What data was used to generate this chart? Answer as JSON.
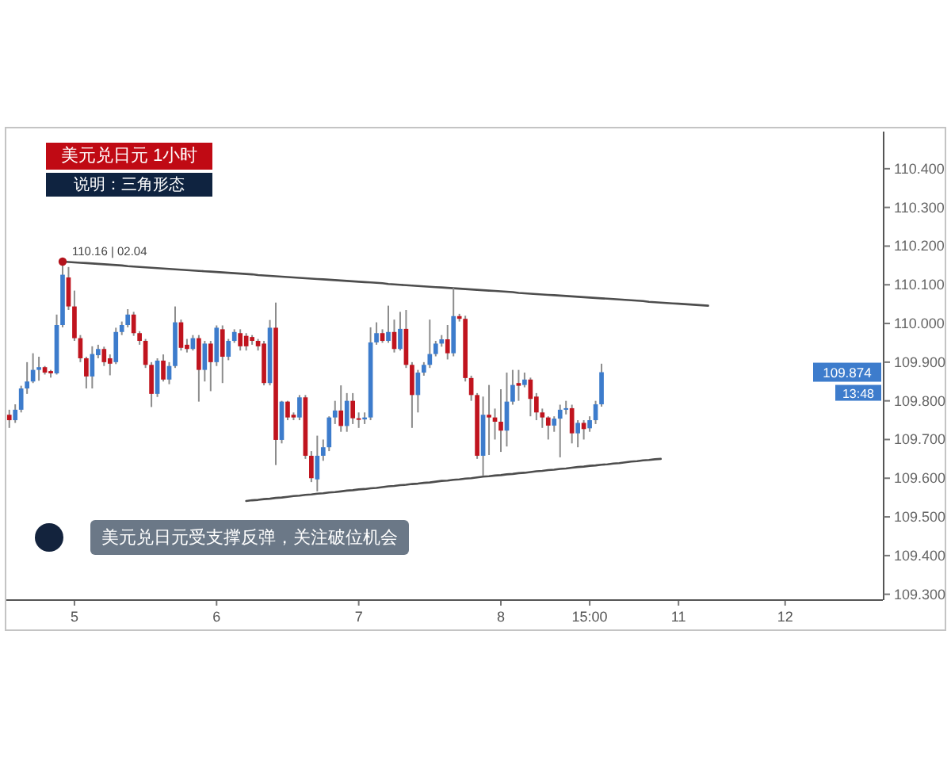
{
  "chart_data": {
    "type": "candlestick",
    "title": "美元兑日元 1小时",
    "subtitle": "说明：三角形态",
    "categories": [
      null,
      null,
      null,
      null,
      null,
      null,
      null,
      null,
      null,
      null,
      null,
      "5",
      null,
      null,
      null,
      null,
      null,
      null,
      null,
      null,
      null,
      null,
      null,
      null,
      null,
      null,
      null,
      null,
      null,
      null,
      null,
      null,
      null,
      null,
      null,
      "6",
      null,
      null,
      null,
      null,
      null,
      null,
      null,
      null,
      null,
      null,
      null,
      null,
      null,
      null,
      null,
      null,
      null,
      null,
      null,
      null,
      null,
      null,
      null,
      "7",
      null,
      null,
      null,
      null,
      null,
      null,
      null,
      null,
      null,
      null,
      null,
      null,
      null,
      null,
      null,
      null,
      null,
      null,
      null,
      null,
      null,
      null,
      null,
      "8",
      null,
      null,
      null,
      null,
      null,
      null,
      null,
      null,
      null,
      null,
      null,
      null,
      null,
      null,
      "15:00",
      null,
      null,
      null,
      null,
      null,
      null,
      null,
      null,
      null,
      null,
      null,
      null,
      null,
      null,
      "11",
      null,
      null,
      null,
      null,
      null,
      null,
      null,
      null,
      null,
      null,
      null,
      null,
      null,
      null,
      null,
      null,
      null,
      "12",
      null,
      null,
      null,
      null,
      null,
      null,
      null,
      null,
      null,
      null,
      null,
      null,
      null,
      null,
      null,
      null
    ],
    "ohlc": [
      [
        109.764,
        109.777,
        109.73,
        109.75
      ],
      [
        109.75,
        109.791,
        109.743,
        109.777
      ],
      [
        109.777,
        109.839,
        109.77,
        109.832
      ],
      [
        109.832,
        109.9,
        109.818,
        109.85
      ],
      [
        109.85,
        109.923,
        109.846,
        109.88
      ],
      [
        109.88,
        109.914,
        109.852,
        109.887
      ],
      [
        109.887,
        109.89,
        109.868,
        109.873
      ],
      [
        109.877,
        109.88,
        109.86,
        109.871
      ],
      [
        109.871,
        110.023,
        109.868,
        109.996
      ],
      [
        109.996,
        110.16,
        109.99,
        110.126
      ],
      [
        110.119,
        110.146,
        110.035,
        110.044
      ],
      [
        110.044,
        110.085,
        109.955,
        109.962
      ],
      [
        109.962,
        109.97,
        109.9,
        109.91
      ],
      [
        109.91,
        109.914,
        109.832,
        109.863
      ],
      [
        109.863,
        109.941,
        109.832,
        109.921
      ],
      [
        109.918,
        109.945,
        109.91,
        109.934
      ],
      [
        109.934,
        109.94,
        109.89,
        109.9
      ],
      [
        109.91,
        109.92,
        109.866,
        109.896
      ],
      [
        109.9,
        109.989,
        109.895,
        109.978
      ],
      [
        109.978,
        110.005,
        109.97,
        109.996
      ],
      [
        109.996,
        110.037,
        109.99,
        110.023
      ],
      [
        110.023,
        110.03,
        109.968,
        109.975
      ],
      [
        109.975,
        109.98,
        109.945,
        109.955
      ],
      [
        109.955,
        109.96,
        109.885,
        109.893
      ],
      [
        109.893,
        109.9,
        109.784,
        109.818
      ],
      [
        109.818,
        109.91,
        109.81,
        109.904
      ],
      [
        109.904,
        109.92,
        109.85,
        109.855
      ],
      [
        109.855,
        109.9,
        109.843,
        109.89
      ],
      [
        109.89,
        110.044,
        109.885,
        110.003
      ],
      [
        110.003,
        110.01,
        109.93,
        109.937
      ],
      [
        109.945,
        109.96,
        109.925,
        109.934
      ],
      [
        109.934,
        109.97,
        109.93,
        109.962
      ],
      [
        109.962,
        109.97,
        109.798,
        109.88
      ],
      [
        109.88,
        109.955,
        109.85,
        109.948
      ],
      [
        109.948,
        109.955,
        109.825,
        109.9
      ],
      [
        109.9,
        109.995,
        109.89,
        109.989
      ],
      [
        109.985,
        109.995,
        109.846,
        109.914
      ],
      [
        109.914,
        109.96,
        109.905,
        109.955
      ],
      [
        109.955,
        109.985,
        109.95,
        109.978
      ],
      [
        109.975,
        109.985,
        109.93,
        109.941
      ],
      [
        109.968,
        109.975,
        109.93,
        109.941
      ],
      [
        109.965,
        109.97,
        109.945,
        109.955
      ],
      [
        109.955,
        109.96,
        109.93,
        109.941
      ],
      [
        109.948,
        109.955,
        109.84,
        109.846
      ],
      [
        109.846,
        110.009,
        109.84,
        109.989
      ],
      [
        109.989,
        110.054,
        109.634,
        109.699
      ],
      [
        109.699,
        109.8,
        109.69,
        109.798
      ],
      [
        109.798,
        109.8,
        109.75,
        109.757
      ],
      [
        109.764,
        109.77,
        109.75,
        109.757
      ],
      [
        109.757,
        109.815,
        109.75,
        109.809
      ],
      [
        109.809,
        109.815,
        109.65,
        109.658
      ],
      [
        109.658,
        109.67,
        109.59,
        109.6
      ],
      [
        109.597,
        109.71,
        109.566,
        109.658
      ],
      [
        109.658,
        109.7,
        109.645,
        109.68
      ],
      [
        109.68,
        109.76,
        109.67,
        109.757
      ],
      [
        109.757,
        109.8,
        109.74,
        109.775
      ],
      [
        109.775,
        109.84,
        109.72,
        109.735
      ],
      [
        109.735,
        109.82,
        109.72,
        109.8
      ],
      [
        109.8,
        109.82,
        109.74,
        109.755
      ],
      [
        109.755,
        109.77,
        109.73,
        109.752
      ],
      [
        109.752,
        109.77,
        109.74,
        109.757
      ],
      [
        109.757,
        109.99,
        109.75,
        109.951
      ],
      [
        109.951,
        110.003,
        109.945,
        109.975
      ],
      [
        109.975,
        109.985,
        109.95,
        109.955
      ],
      [
        109.955,
        110.046,
        109.95,
        109.978
      ],
      [
        109.978,
        110.01,
        109.925,
        109.934
      ],
      [
        109.934,
        110.03,
        109.93,
        109.986
      ],
      [
        109.986,
        110.035,
        109.885,
        109.893
      ],
      [
        109.893,
        109.9,
        109.73,
        109.815
      ],
      [
        109.815,
        109.88,
        109.77,
        109.873
      ],
      [
        109.873,
        109.9,
        109.865,
        109.893
      ],
      [
        109.893,
        110.01,
        109.885,
        109.921
      ],
      [
        109.921,
        109.955,
        109.915,
        109.948
      ],
      [
        109.948,
        109.97,
        109.94,
        109.959
      ],
      [
        109.959,
        109.996,
        109.907,
        109.923
      ],
      [
        109.923,
        110.092,
        109.915,
        110.019
      ],
      [
        110.019,
        110.025,
        110.005,
        110.012
      ],
      [
        110.012,
        110.02,
        109.85,
        109.859
      ],
      [
        109.859,
        109.865,
        109.8,
        109.815
      ],
      [
        109.815,
        109.82,
        109.65,
        109.658
      ],
      [
        109.658,
        109.811,
        109.607,
        109.764
      ],
      [
        109.764,
        109.841,
        109.66,
        109.757
      ],
      [
        109.757,
        109.78,
        109.7,
        109.746
      ],
      [
        109.746,
        109.83,
        109.668,
        109.723
      ],
      [
        109.723,
        109.873,
        109.682,
        109.798
      ],
      [
        109.798,
        109.88,
        109.79,
        109.841
      ],
      [
        109.846,
        109.88,
        109.8,
        109.839
      ],
      [
        109.841,
        109.873,
        109.835,
        109.855
      ],
      [
        109.855,
        109.86,
        109.76,
        109.805
      ],
      [
        109.811,
        109.82,
        109.75,
        109.77
      ],
      [
        109.77,
        109.78,
        109.73,
        109.757
      ],
      [
        109.757,
        109.76,
        109.7,
        109.736
      ],
      [
        109.736,
        109.76,
        109.72,
        109.754
      ],
      [
        109.754,
        109.79,
        109.654,
        109.777
      ],
      [
        109.777,
        109.8,
        109.765,
        109.781
      ],
      [
        109.781,
        109.79,
        109.69,
        109.716
      ],
      [
        109.716,
        109.75,
        109.68,
        109.743
      ],
      [
        109.743,
        109.75,
        109.7,
        109.727
      ],
      [
        109.729,
        109.76,
        109.72,
        109.75
      ],
      [
        109.75,
        109.8,
        109.74,
        109.791
      ],
      [
        109.791,
        109.896,
        109.785,
        109.874
      ],
      null,
      null,
      null,
      null,
      null,
      null,
      null,
      null,
      null,
      null,
      null,
      null,
      null,
      null,
      null,
      null,
      null,
      null,
      null,
      null,
      null,
      null,
      null,
      null,
      null,
      null,
      null,
      null,
      null,
      null,
      null,
      null,
      null,
      null,
      null,
      null,
      null,
      null,
      null,
      null,
      null,
      null,
      null,
      null,
      null,
      null,
      null
    ],
    "colors": [
      "#c0141e",
      "#3d7ccc",
      "#3d7ccc",
      "#3d7ccc",
      "#3d7ccc",
      "#3d7ccc",
      "#c0141e",
      "#c0141e",
      "#3d7ccc",
      "#3d7ccc",
      "#c0141e",
      "#c0141e",
      "#c0141e",
      "#c0141e",
      "#3d7ccc",
      "#3d7ccc",
      "#c0141e",
      "#c0141e",
      "#3d7ccc",
      "#3d7ccc",
      "#3d7ccc",
      "#c0141e",
      "#c0141e",
      "#c0141e",
      "#c0141e",
      "#3d7ccc",
      "#c0141e",
      "#3d7ccc",
      "#3d7ccc",
      "#c0141e",
      "#c0141e",
      "#3d7ccc",
      "#c0141e",
      "#3d7ccc",
      "#c0141e",
      "#3d7ccc",
      "#c0141e",
      "#3d7ccc",
      "#3d7ccc",
      "#c0141e",
      "#c0141e",
      "#c0141e",
      "#c0141e",
      "#c0141e",
      "#3d7ccc",
      "#c0141e",
      "#3d7ccc",
      "#c0141e",
      "#c0141e",
      "#3d7ccc",
      "#c0141e",
      "#c0141e",
      "#3d7ccc",
      "#3d7ccc",
      "#3d7ccc",
      "#3d7ccc",
      "#c0141e",
      "#3d7ccc",
      "#c0141e",
      "#c0141e",
      "#3d7ccc",
      "#3d7ccc",
      "#3d7ccc",
      "#c0141e",
      "#3d7ccc",
      "#c0141e",
      "#3d7ccc",
      "#c0141e",
      "#c0141e",
      "#3d7ccc",
      "#3d7ccc",
      "#3d7ccc",
      "#3d7ccc",
      "#3d7ccc",
      "#c0141e",
      "#3d7ccc",
      "#c0141e",
      "#c0141e",
      "#c0141e",
      "#c0141e",
      "#3d7ccc",
      "#c0141e",
      "#c0141e",
      "#c0141e",
      "#3d7ccc",
      "#3d7ccc",
      "#c0141e",
      "#3d7ccc",
      "#c0141e",
      "#c0141e",
      "#c0141e",
      "#c0141e",
      "#3d7ccc",
      "#3d7ccc",
      "#3d7ccc",
      "#c0141e",
      "#3d7ccc",
      "#c0141e",
      "#3d7ccc",
      "#3d7ccc",
      "#3d7ccc",
      null,
      null,
      null,
      null,
      null,
      null,
      null,
      null,
      null,
      null,
      null,
      null,
      null,
      null,
      null,
      null,
      null,
      null,
      null,
      null,
      null,
      null,
      null,
      null,
      null,
      null,
      null,
      null,
      null,
      null,
      null,
      null,
      null,
      null,
      null,
      null,
      null,
      null,
      null,
      null,
      null,
      null,
      null,
      null,
      null,
      null,
      null
    ],
    "series": [
      {
        "type": "line",
        "color": "#4d4d4d",
        "values": [
          null,
          null,
          null,
          null,
          null,
          null,
          null,
          null,
          null,
          110.16,
          110.159,
          110.158,
          110.157,
          110.156,
          110.155,
          110.154,
          110.153,
          110.152,
          110.151,
          110.15,
          110.148,
          110.147,
          110.146,
          110.145,
          110.144,
          110.143,
          110.142,
          110.141,
          110.14,
          110.139,
          110.138,
          110.137,
          110.136,
          110.135,
          110.134,
          110.133,
          110.132,
          110.131,
          110.13,
          110.129,
          110.128,
          110.127,
          110.125,
          110.124,
          110.123,
          110.122,
          110.121,
          110.12,
          110.119,
          110.118,
          110.117,
          110.116,
          110.115,
          110.114,
          110.113,
          110.112,
          110.111,
          110.11,
          110.109,
          110.108,
          110.107,
          110.106,
          110.105,
          110.104,
          110.102,
          110.101,
          110.1,
          110.099,
          110.098,
          110.097,
          110.096,
          110.095,
          110.094,
          110.093,
          110.092,
          110.091,
          110.09,
          110.089,
          110.088,
          110.087,
          110.086,
          110.085,
          110.084,
          110.083,
          110.082,
          110.081,
          110.079,
          110.078,
          110.077,
          110.076,
          110.075,
          110.074,
          110.073,
          110.072,
          110.071,
          110.07,
          110.069,
          110.068,
          110.067,
          110.066,
          110.065,
          110.064,
          110.063,
          110.062,
          110.061,
          110.06,
          110.059,
          110.058,
          110.056,
          110.055,
          110.054,
          110.053,
          110.052,
          110.051,
          110.05,
          110.049,
          110.048,
          110.047,
          110.046,
          null,
          null,
          null,
          null,
          null,
          null,
          null,
          null,
          null,
          null,
          null,
          null,
          null,
          null,
          null,
          null,
          null,
          null,
          null,
          null,
          null,
          null,
          null,
          null,
          null,
          null,
          null,
          null,
          null
        ]
      },
      {
        "type": "line",
        "color": "#4d4d4d",
        "values": [
          null,
          null,
          null,
          null,
          null,
          null,
          null,
          null,
          null,
          null,
          null,
          null,
          null,
          null,
          null,
          null,
          null,
          null,
          null,
          null,
          null,
          null,
          null,
          null,
          null,
          null,
          null,
          null,
          null,
          null,
          null,
          null,
          null,
          null,
          null,
          null,
          null,
          null,
          null,
          null,
          109.541,
          109.543,
          109.544,
          109.546,
          109.547,
          109.549,
          109.55,
          109.552,
          109.554,
          109.555,
          109.557,
          109.558,
          109.56,
          109.561,
          109.563,
          109.564,
          109.566,
          109.568,
          109.569,
          109.571,
          109.572,
          109.574,
          109.575,
          109.577,
          109.579,
          109.58,
          109.582,
          109.583,
          109.585,
          109.586,
          109.588,
          109.589,
          109.591,
          109.593,
          109.594,
          109.596,
          109.597,
          109.599,
          109.6,
          109.602,
          109.604,
          109.605,
          109.607,
          109.608,
          109.61,
          109.611,
          109.613,
          109.614,
          109.616,
          109.618,
          109.619,
          109.621,
          109.622,
          109.624,
          109.625,
          109.627,
          109.629,
          109.63,
          109.632,
          109.633,
          109.635,
          109.636,
          109.638,
          109.639,
          109.641,
          109.643,
          109.644,
          109.646,
          109.647,
          109.649,
          109.65,
          null,
          null,
          null,
          null,
          null,
          null,
          null,
          null,
          null,
          null,
          null,
          null,
          null,
          null,
          null,
          null,
          null,
          null,
          null,
          null,
          null,
          null,
          null,
          null,
          null,
          null,
          null,
          null,
          null,
          null,
          null,
          null,
          null,
          null,
          null,
          null,
          null
        ]
      }
    ],
    "ylim": [
      109.287,
      110.496
    ],
    "yticks": [
      {
        "value": 109.3,
        "label": "109.300"
      },
      {
        "value": 109.4,
        "label": "109.400"
      },
      {
        "value": 109.5,
        "label": "109.500"
      },
      {
        "value": 109.6,
        "label": "109.600"
      },
      {
        "value": 109.7,
        "label": "109.700"
      },
      {
        "value": 109.8,
        "label": "109.800"
      },
      {
        "value": 109.9,
        "label": "109.900"
      },
      {
        "value": 110.0,
        "label": "110.000"
      },
      {
        "value": 110.1,
        "label": "110.100"
      },
      {
        "value": 110.2,
        "label": "110.200"
      },
      {
        "value": 110.3,
        "label": "110.300"
      },
      {
        "value": 110.4,
        "label": "110.400"
      }
    ],
    "annotations": [
      {
        "text": "110.16 | 02.04",
        "y": 110.16
      },
      "109.874",
      "13:48",
      "美元兑日元受支撑反弹，关注破位机会"
    ]
  }
}
